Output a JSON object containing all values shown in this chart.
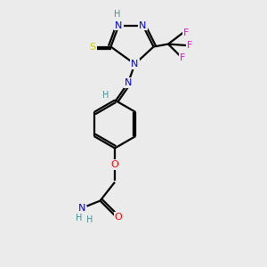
{
  "background_color": "#ebebeb",
  "bond_color": "#000000",
  "atom_colors": {
    "N": "#0000ee",
    "O": "#ff0000",
    "S": "#cccc00",
    "F": "#ee00ee",
    "H": "#4a9090",
    "C": "#000000"
  },
  "figsize": [
    3.0,
    3.0
  ],
  "dpi": 100
}
